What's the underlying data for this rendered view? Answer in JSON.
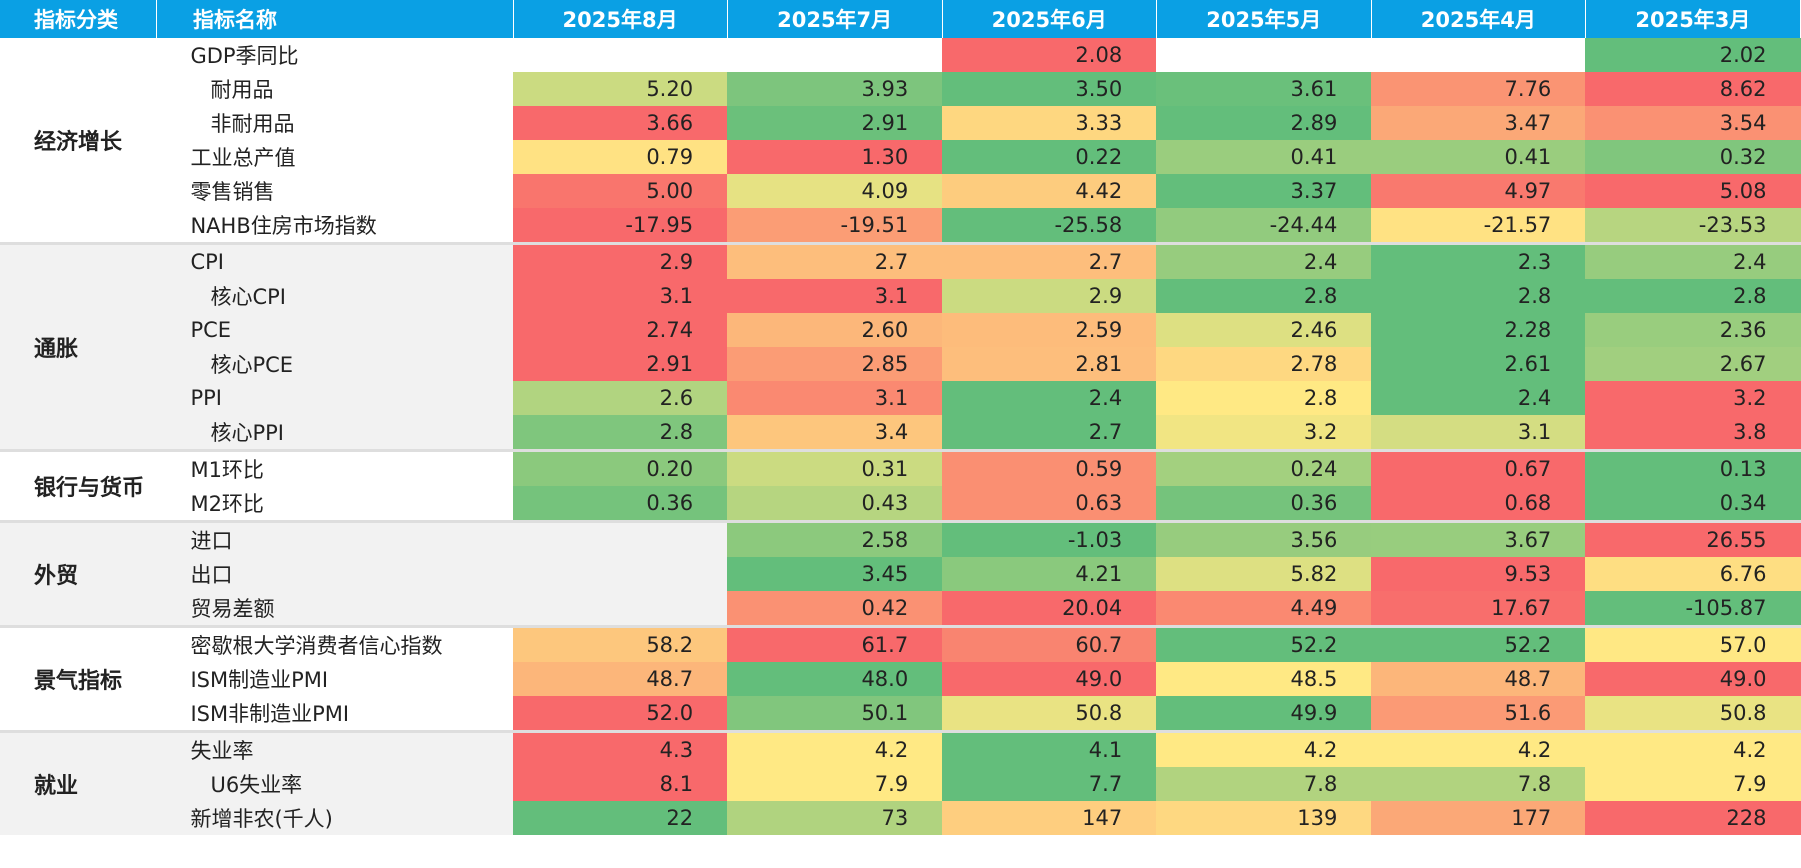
{
  "header": {
    "category_label": "指标分类",
    "name_label": "指标名称"
  },
  "chart_data": {
    "type": "heatmap",
    "columns": [
      "2025年8月",
      "2025年7月",
      "2025年6月",
      "2025年5月",
      "2025年4月",
      "2025年3月"
    ],
    "palette": {
      "green": "#63be7b",
      "yellow": "#ffe984",
      "red": "#f8696b"
    },
    "groups": [
      {
        "category": "经济增长",
        "rows": [
          {
            "name": "GDP季同比",
            "indent": false,
            "values": [
              null,
              null,
              "2.08",
              null,
              null,
              "2.02"
            ]
          },
          {
            "name": "耐用品",
            "indent": true,
            "values": [
              "5.20",
              "3.93",
              "3.50",
              "3.61",
              "7.76",
              "8.62"
            ]
          },
          {
            "name": "非耐用品",
            "indent": true,
            "values": [
              "3.66",
              "2.91",
              "3.33",
              "2.89",
              "3.47",
              "3.54"
            ]
          },
          {
            "name": "工业总产值",
            "indent": false,
            "values": [
              "0.79",
              "1.30",
              "0.22",
              "0.41",
              "0.41",
              "0.32"
            ]
          },
          {
            "name": "零售销售",
            "indent": false,
            "values": [
              "5.00",
              "4.09",
              "4.42",
              "3.37",
              "4.97",
              "5.08"
            ]
          },
          {
            "name": "NAHB住房市场指数",
            "indent": false,
            "values": [
              "-17.95",
              "-19.51",
              "-25.58",
              "-24.44",
              "-21.57",
              "-23.53"
            ]
          }
        ]
      },
      {
        "category": "通胀",
        "rows": [
          {
            "name": "CPI",
            "indent": false,
            "values": [
              "2.9",
              "2.7",
              "2.7",
              "2.4",
              "2.3",
              "2.4"
            ]
          },
          {
            "name": "核心CPI",
            "indent": true,
            "values": [
              "3.1",
              "3.1",
              "2.9",
              "2.8",
              "2.8",
              "2.8"
            ]
          },
          {
            "name": "PCE",
            "indent": false,
            "values": [
              "2.74",
              "2.60",
              "2.59",
              "2.46",
              "2.28",
              "2.36"
            ]
          },
          {
            "name": "核心PCE",
            "indent": true,
            "values": [
              "2.91",
              "2.85",
              "2.81",
              "2.78",
              "2.61",
              "2.67"
            ]
          },
          {
            "name": "PPI",
            "indent": false,
            "values": [
              "2.6",
              "3.1",
              "2.4",
              "2.8",
              "2.4",
              "3.2"
            ]
          },
          {
            "name": "核心PPI",
            "indent": true,
            "values": [
              "2.8",
              "3.4",
              "2.7",
              "3.2",
              "3.1",
              "3.8"
            ]
          }
        ]
      },
      {
        "category": "银行与货币",
        "rows": [
          {
            "name": "M1环比",
            "indent": false,
            "values": [
              "0.20",
              "0.31",
              "0.59",
              "0.24",
              "0.67",
              "0.13"
            ]
          },
          {
            "name": "M2环比",
            "indent": false,
            "values": [
              "0.36",
              "0.43",
              "0.63",
              "0.36",
              "0.68",
              "0.34"
            ]
          }
        ]
      },
      {
        "category": "外贸",
        "rows": [
          {
            "name": "进口",
            "indent": false,
            "values": [
              null,
              "2.58",
              "-1.03",
              "3.56",
              "3.67",
              "26.55"
            ]
          },
          {
            "name": "出口",
            "indent": false,
            "values": [
              null,
              "3.45",
              "4.21",
              "5.82",
              "9.53",
              "6.76"
            ]
          },
          {
            "name": "贸易差额",
            "indent": false,
            "values": [
              null,
              "0.42",
              "20.04",
              "4.49",
              "17.67",
              "-105.87"
            ]
          }
        ]
      },
      {
        "category": "景气指标",
        "rows": [
          {
            "name": "密歇根大学消费者信心指数",
            "indent": false,
            "values": [
              "58.2",
              "61.7",
              "60.7",
              "52.2",
              "52.2",
              "57.0"
            ]
          },
          {
            "name": "ISM制造业PMI",
            "indent": false,
            "values": [
              "48.7",
              "48.0",
              "49.0",
              "48.5",
              "48.7",
              "49.0"
            ]
          },
          {
            "name": "ISM非制造业PMI",
            "indent": false,
            "values": [
              "52.0",
              "50.1",
              "50.8",
              "49.9",
              "51.6",
              "50.8"
            ]
          }
        ]
      },
      {
        "category": "就业",
        "rows": [
          {
            "name": "失业率",
            "indent": false,
            "values": [
              "4.3",
              "4.2",
              "4.1",
              "4.2",
              "4.2",
              "4.2"
            ]
          },
          {
            "name": "U6失业率",
            "indent": true,
            "values": [
              "8.1",
              "7.9",
              "7.7",
              "7.8",
              "7.8",
              "7.9"
            ]
          },
          {
            "name": "新增非农(千人)",
            "indent": false,
            "values": [
              "22",
              "73",
              "147",
              "139",
              "177",
              "228"
            ]
          }
        ]
      }
    ]
  }
}
